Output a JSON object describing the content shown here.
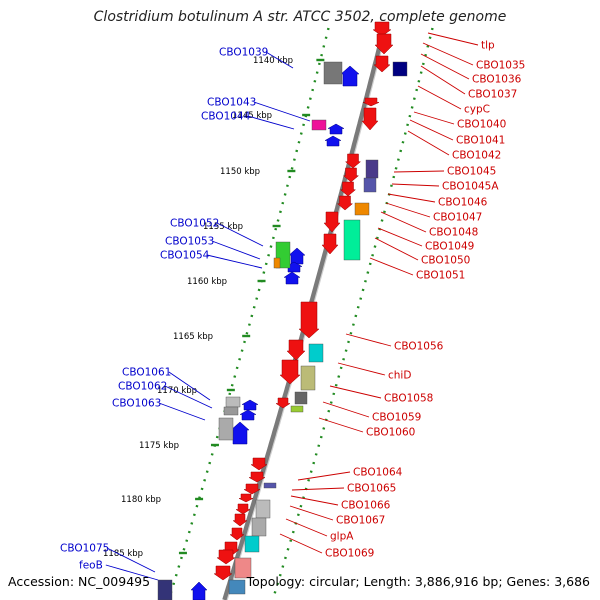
{
  "title": "Clostridium botulinum A str. ATCC 3502, complete genome",
  "accession": "Accession: NC_009495",
  "topology": "Topology: circular; Length: 3,886,916 bp; Genes: 3,686",
  "colors": {
    "forward": "#ee1111",
    "reverse": "#1111ee",
    "forward_label": "#cc0000",
    "reverse_label": "#0000cc",
    "backbone": "#7a7a7a",
    "ruler": "#228b22"
  },
  "ticks": [
    "1140 kbp",
    "1145 kbp",
    "1150 kbp",
    "1155 kbp",
    "1160 kbp",
    "1165 kbp",
    "1170 kbp",
    "1175 kbp",
    "1180 kbp",
    "1185 kbp"
  ],
  "left_labels": [
    "CBO1039",
    "CBO1043",
    "CBO1044",
    "CBO1052",
    "CBO1053",
    "CBO1054",
    "CBO1061",
    "CBO1062",
    "CBO1063",
    "CBO1075",
    "feoB"
  ],
  "right_labels": [
    "tlp",
    "CBO1035",
    "CBO1036",
    "CBO1037",
    "cypC",
    "CBO1040",
    "CBO1041",
    "CBO1042",
    "CBO1045",
    "CBO1045A",
    "CBO1046",
    "CBO1047",
    "CBO1048",
    "CBO1049",
    "CBO1050",
    "CBO1051",
    "CBO1056",
    "chiD",
    "CBO1058",
    "CBO1059",
    "CBO1060",
    "CBO1064",
    "CBO1065",
    "CBO1066",
    "CBO1067",
    "glpA",
    "CBO1069"
  ]
}
